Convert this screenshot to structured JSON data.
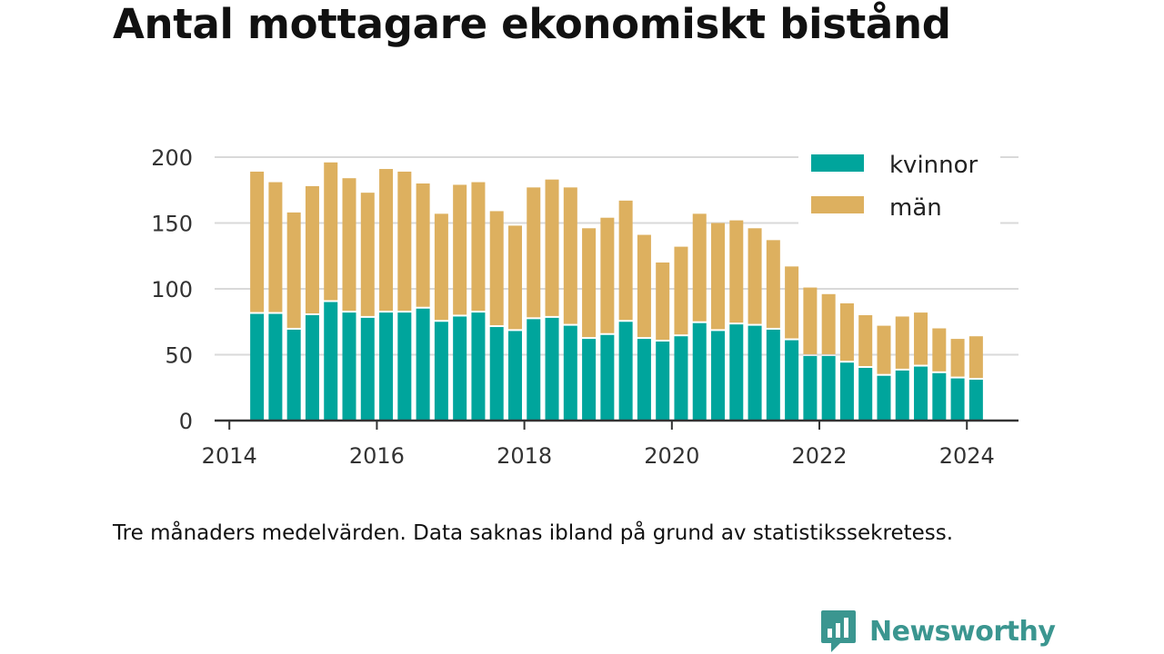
{
  "title": "Antal mottagare ekonomiskt bistånd",
  "caption": "Tre månaders medelvärden. Data saknas ibland på grund av statistikssekretess.",
  "brand": {
    "name": "Newsworthy",
    "color": "#3b9690",
    "icon": "newsworthy-logo-icon"
  },
  "chart_data": {
    "type": "bar",
    "stacked": true,
    "x": [
      2014.375,
      2014.625,
      2014.875,
      2015.125,
      2015.375,
      2015.625,
      2015.875,
      2016.125,
      2016.375,
      2016.625,
      2016.875,
      2017.125,
      2017.375,
      2017.625,
      2017.875,
      2018.125,
      2018.375,
      2018.625,
      2018.875,
      2019.125,
      2019.375,
      2019.625,
      2019.875,
      2020.125,
      2020.375,
      2020.625,
      2020.875,
      2021.125,
      2021.375,
      2021.625,
      2021.875,
      2022.125,
      2022.375,
      2022.625,
      2022.875,
      2023.125,
      2023.375,
      2023.625,
      2023.875,
      2024.125
    ],
    "series": [
      {
        "name": "kvinnor",
        "color": "#00a59c",
        "values": [
          81,
          81,
          69,
          80,
          90,
          82,
          78,
          82,
          82,
          85,
          75,
          79,
          82,
          71,
          68,
          77,
          78,
          72,
          62,
          65,
          75,
          62,
          60,
          64,
          74,
          68,
          73,
          72,
          69,
          61,
          49,
          49,
          44,
          40,
          34,
          38,
          41,
          36,
          32,
          31
        ]
      },
      {
        "name": "män",
        "color": "#ddb05f",
        "values": [
          108,
          100,
          89,
          98,
          106,
          102,
          95,
          109,
          107,
          95,
          82,
          100,
          99,
          88,
          80,
          100,
          105,
          105,
          84,
          89,
          92,
          79,
          60,
          68,
          83,
          82,
          79,
          74,
          68,
          56,
          52,
          47,
          45,
          40,
          38,
          41,
          41,
          34,
          30,
          33
        ]
      }
    ],
    "ylim": [
      0,
      200
    ],
    "yticks": [
      0,
      50,
      100,
      150,
      200
    ],
    "xlim": [
      2013.8,
      2024.7
    ],
    "xticks": [
      2014,
      2016,
      2018,
      2020,
      2022,
      2024
    ],
    "grid": true,
    "legend": "top-right"
  }
}
